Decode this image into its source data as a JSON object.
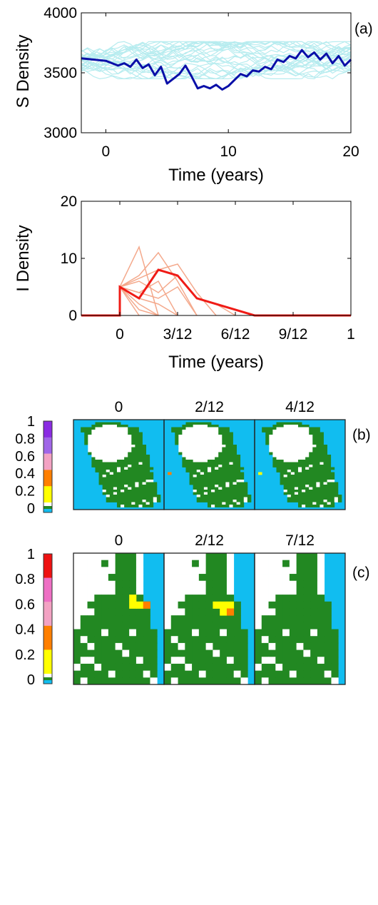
{
  "panels": {
    "a": "(a)",
    "b": "(b)",
    "c": "(c)"
  },
  "colors": {
    "s_background": "#b7ecef",
    "s_highlight": "#0a0fa8",
    "i_background": "#f4a98c",
    "i_highlight": "#ef1b16",
    "sea": "#11bdf0",
    "land": "#228822",
    "empty": "#ffffff",
    "yellow": "#ffff00",
    "orange": "#ff7f00"
  },
  "chart_data": [
    {
      "id": "s-density",
      "type": "line",
      "ylabel": "S Density",
      "xlabel": "Time (years)",
      "xlim": [
        -2,
        20
      ],
      "ylim": [
        3000,
        4000
      ],
      "xticks": [
        0,
        10,
        20
      ],
      "xtick_labels": [
        "0",
        "10",
        "20"
      ],
      "yticks": [
        3000,
        3500,
        4000
      ],
      "ytick_labels": [
        "3000",
        "3500",
        "4000"
      ],
      "background_band": [
        3450,
        3760
      ],
      "highlight": {
        "x": [
          -2,
          -1,
          0,
          1,
          1.5,
          2,
          2.5,
          3,
          3.5,
          4,
          4.5,
          5,
          5.5,
          6,
          6.5,
          7,
          7.5,
          8,
          8.5,
          9,
          9.5,
          10,
          10.5,
          11,
          11.5,
          12,
          12.5,
          13,
          13.5,
          14,
          14.5,
          15,
          15.5,
          16,
          16.5,
          17,
          17.5,
          18,
          18.5,
          19,
          19.5,
          20
        ],
        "y": [
          3620,
          3610,
          3600,
          3560,
          3580,
          3550,
          3610,
          3540,
          3570,
          3480,
          3550,
          3410,
          3450,
          3490,
          3560,
          3470,
          3370,
          3390,
          3370,
          3400,
          3360,
          3390,
          3440,
          3490,
          3470,
          3520,
          3510,
          3550,
          3530,
          3610,
          3590,
          3640,
          3620,
          3690,
          3630,
          3670,
          3610,
          3660,
          3580,
          3640,
          3560,
          3610
        ]
      }
    },
    {
      "id": "i-density",
      "type": "line",
      "ylabel": "I Density",
      "xlabel": "Time (years)",
      "xlim": [
        -0.1667,
        1
      ],
      "ylim": [
        0,
        20
      ],
      "xticks": [
        0,
        0.25,
        0.5,
        0.75,
        1
      ],
      "xtick_labels": [
        "0",
        "3/12",
        "6/12",
        "9/12",
        "1"
      ],
      "yticks": [
        0,
        10,
        20
      ],
      "ytick_labels": [
        "0",
        "10",
        "20"
      ],
      "background_lines": [
        {
          "x": [
            0,
            0.0833,
            0.1667
          ],
          "y": [
            5,
            12,
            0
          ]
        },
        {
          "x": [
            0,
            0.0833,
            0.1667,
            0.25,
            0.3333
          ],
          "y": [
            5,
            7,
            11,
            6,
            0
          ]
        },
        {
          "x": [
            0,
            0.1667,
            0.25,
            0.3333,
            0.4167
          ],
          "y": [
            5,
            8,
            9,
            4,
            0
          ]
        },
        {
          "x": [
            0,
            0.0833,
            0.1667,
            0.25
          ],
          "y": [
            5,
            4,
            6,
            0
          ]
        },
        {
          "x": [
            0,
            0.0833,
            0.1667
          ],
          "y": [
            5,
            2,
            0
          ]
        },
        {
          "x": [
            0,
            0.0833
          ],
          "y": [
            5,
            0
          ]
        },
        {
          "x": [
            0,
            0.0833,
            0.1667,
            0.25
          ],
          "y": [
            5,
            3,
            2,
            0
          ]
        },
        {
          "x": [
            0,
            0.1667,
            0.25,
            0.3333
          ],
          "y": [
            5,
            3,
            5,
            0
          ]
        },
        {
          "x": [
            0,
            0.0833,
            0.1667,
            0.25,
            0.3333,
            0.4167,
            0.5
          ],
          "y": [
            5,
            6,
            4,
            7,
            3,
            2,
            0
          ]
        },
        {
          "x": [
            0,
            0.0833,
            0.1667
          ],
          "y": [
            5,
            1,
            0
          ]
        }
      ],
      "highlight": {
        "x": [
          -0.1667,
          0,
          0,
          0.0833,
          0.1667,
          0.25,
          0.3333,
          0.5833,
          1
        ],
        "y": [
          0,
          0,
          5,
          3,
          8,
          7,
          3,
          0,
          0
        ]
      }
    }
  ],
  "map_b": {
    "titles": [
      "0",
      "2/12",
      "4/12"
    ],
    "colorbar": {
      "ticks": [
        "1",
        "0.8",
        "0.6",
        "0.4",
        "0.2",
        "0"
      ],
      "colors": [
        "#8a2be2",
        "#a066e8",
        "#f3a2c3",
        "#ff7f00",
        "#ffff00"
      ]
    },
    "infected": [
      {
        "panel": 0,
        "cell": [
          26,
          21
        ],
        "color": "#ff7f00"
      },
      {
        "panel": 1,
        "cell": [
          26,
          21
        ],
        "color": "#ffff00"
      }
    ]
  },
  "map_c": {
    "titles": [
      "0",
      "2/12",
      "7/12"
    ],
    "colorbar": {
      "ticks": [
        "1",
        "0.8",
        "0.6",
        "0.4",
        "0.2",
        "0"
      ],
      "colors": [
        "#ee1111",
        "#ee6fc4",
        "#f3a2c3",
        "#ff7f00",
        "#ffff00"
      ]
    },
    "infected": [
      {
        "panel": 0,
        "cell": [
          8,
          7
        ],
        "color": "#ffff00"
      },
      {
        "panel": 0,
        "cell": [
          9,
          7
        ],
        "color": "#ffff00"
      },
      {
        "panel": 0,
        "cell": [
          8,
          6
        ],
        "color": "#ffff00"
      },
      {
        "panel": 0,
        "cell": [
          10,
          7
        ],
        "color": "#ff7f00"
      },
      {
        "panel": 1,
        "cell": [
          7,
          7
        ],
        "color": "#ffff00"
      },
      {
        "panel": 1,
        "cell": [
          8,
          7
        ],
        "color": "#ffff00"
      },
      {
        "panel": 1,
        "cell": [
          9,
          7
        ],
        "color": "#ffff00"
      },
      {
        "panel": 1,
        "cell": [
          8,
          8
        ],
        "color": "#ffff00"
      },
      {
        "panel": 1,
        "cell": [
          9,
          8
        ],
        "color": "#ff7f00"
      }
    ]
  }
}
